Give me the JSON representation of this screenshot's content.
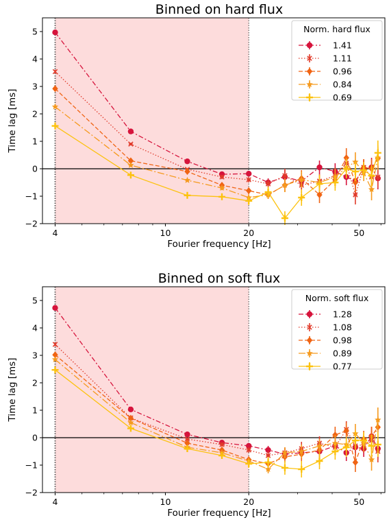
{
  "chart_data": [
    {
      "type": "line",
      "title": "Binned on hard flux",
      "xlabel": "Fourier frequency [Hz]",
      "ylabel": "Time lag [ms]",
      "xscale": "log",
      "xlim": [
        3.6,
        62
      ],
      "ylim": [
        -2,
        5.5
      ],
      "xticks": [
        4,
        10,
        20,
        50
      ],
      "yticks": [
        -2,
        -1,
        0,
        1,
        2,
        3,
        4,
        5
      ],
      "shaded_range": [
        4,
        20
      ],
      "shaded_color": "#fddcdc",
      "vlines": [
        4,
        20
      ],
      "hline": 0,
      "legend_title": "Norm. hard flux",
      "legend_loc": "upper right",
      "x": [
        4,
        7.5,
        12,
        16,
        20,
        23.5,
        27,
        31,
        36,
        41,
        45,
        48.5,
        52,
        55.5,
        58.5
      ],
      "series": [
        {
          "name": "1.41",
          "color": "#d6143c",
          "dash": "7,3,2,3",
          "marker": "circle",
          "y": [
            4.97,
            1.36,
            0.27,
            -0.2,
            -0.18,
            -0.5,
            -0.3,
            -0.45,
            0.05,
            -0.1,
            -0.3,
            -0.45,
            0.0,
            0.05,
            -0.35
          ],
          "err": [
            0.08,
            0.06,
            0.06,
            0.08,
            0.1,
            0.15,
            0.25,
            0.3,
            0.25,
            0.3,
            0.3,
            0.35,
            0.3,
            0.35,
            0.4
          ]
        },
        {
          "name": "1.11",
          "color": "#e03a2a",
          "dash": "1.5,2.5",
          "marker": "x",
          "y": [
            3.54,
            0.9,
            -0.02,
            -0.3,
            -0.4,
            -0.55,
            -0.25,
            -0.6,
            -0.45,
            -0.25,
            0.2,
            -0.95,
            0.05,
            -0.3,
            -0.3
          ],
          "err": [
            0.07,
            0.05,
            0.05,
            0.08,
            0.1,
            0.15,
            0.25,
            0.3,
            0.25,
            0.3,
            0.35,
            0.35,
            0.3,
            0.35,
            0.4
          ]
        },
        {
          "name": "0.96",
          "color": "#f06414",
          "dash": "6,3",
          "marker": "diamond",
          "y": [
            2.92,
            0.29,
            -0.1,
            -0.6,
            -0.8,
            -0.95,
            -0.6,
            -0.35,
            -0.95,
            -0.4,
            0.4,
            -0.5,
            0.05,
            0.0,
            0.38
          ],
          "err": [
            0.07,
            0.05,
            0.05,
            0.08,
            0.12,
            0.15,
            0.25,
            0.3,
            0.3,
            0.3,
            0.35,
            0.35,
            0.3,
            0.35,
            0.4
          ]
        },
        {
          "name": "0.84",
          "color": "#f59a1e",
          "dash": "10,3,2,3",
          "marker": "star",
          "y": [
            2.26,
            0.13,
            -0.42,
            -0.7,
            -1.05,
            -0.95,
            -0.6,
            -0.4,
            -0.5,
            -0.3,
            0.05,
            0.25,
            -0.15,
            -0.75,
            0.4
          ],
          "err": [
            0.06,
            0.05,
            0.05,
            0.08,
            0.12,
            0.15,
            0.25,
            0.3,
            0.3,
            0.3,
            0.35,
            0.35,
            0.3,
            0.4,
            0.45
          ]
        },
        {
          "name": "0.69",
          "color": "#fcc20f",
          "dash": "",
          "marker": "plus",
          "y": [
            1.56,
            -0.23,
            -0.97,
            -1.02,
            -1.17,
            -0.85,
            -1.8,
            -1.05,
            -0.55,
            -0.5,
            0.0,
            -0.1,
            -0.05,
            -0.25,
            0.58
          ],
          "err": [
            0.06,
            0.06,
            0.1,
            0.12,
            0.15,
            0.2,
            0.25,
            0.3,
            0.3,
            0.3,
            0.35,
            0.35,
            0.3,
            0.4,
            0.45
          ]
        }
      ]
    },
    {
      "type": "line",
      "title": "Binned on soft flux",
      "xlabel": "Fourier frequency [Hz]",
      "ylabel": "Time lag [ms]",
      "xscale": "log",
      "xlim": [
        3.6,
        62
      ],
      "ylim": [
        -2,
        5.5
      ],
      "xticks": [
        4,
        10,
        20,
        50
      ],
      "yticks": [
        -2,
        -1,
        0,
        1,
        2,
        3,
        4,
        5
      ],
      "shaded_range": [
        4,
        20
      ],
      "shaded_color": "#fddcdc",
      "vlines": [
        4,
        20
      ],
      "hline": 0,
      "legend_title": "Norm. soft flux",
      "legend_loc": "upper right",
      "x": [
        4,
        7.5,
        12,
        16,
        20,
        23.5,
        27,
        31,
        36,
        41,
        45,
        48.5,
        52,
        55.5,
        58.5
      ],
      "series": [
        {
          "name": "1.28",
          "color": "#d6143c",
          "dash": "7,3,2,3",
          "marker": "circle",
          "y": [
            4.73,
            1.03,
            0.12,
            -0.18,
            -0.3,
            -0.45,
            -0.6,
            -0.55,
            -0.5,
            -0.3,
            -0.55,
            -0.35,
            -0.4,
            0.05,
            -0.4
          ],
          "err": [
            0.08,
            0.06,
            0.06,
            0.08,
            0.1,
            0.15,
            0.2,
            0.25,
            0.25,
            0.3,
            0.3,
            0.3,
            0.3,
            0.35,
            0.4
          ]
        },
        {
          "name": "1.08",
          "color": "#e03a2a",
          "dash": "1.5,2.5",
          "marker": "x",
          "y": [
            3.4,
            0.72,
            -0.05,
            -0.25,
            -0.45,
            -0.65,
            -0.55,
            -0.4,
            -0.2,
            -0.35,
            0.3,
            -0.3,
            -0.25,
            -0.1,
            -0.5
          ],
          "err": [
            0.07,
            0.05,
            0.05,
            0.08,
            0.1,
            0.15,
            0.2,
            0.25,
            0.25,
            0.3,
            0.3,
            0.35,
            0.3,
            0.35,
            0.4
          ]
        },
        {
          "name": "0.98",
          "color": "#f06414",
          "dash": "6,3",
          "marker": "diamond",
          "y": [
            3.02,
            0.71,
            -0.2,
            -0.45,
            -0.8,
            -0.95,
            -0.7,
            -0.6,
            -0.45,
            0.1,
            0.25,
            -0.9,
            -0.05,
            0.05,
            0.38
          ],
          "err": [
            0.07,
            0.05,
            0.05,
            0.08,
            0.12,
            0.15,
            0.2,
            0.25,
            0.25,
            0.3,
            0.3,
            0.35,
            0.3,
            0.35,
            0.4
          ]
        },
        {
          "name": "0.89",
          "color": "#f59a1e",
          "dash": "10,3,2,3",
          "marker": "star",
          "y": [
            2.85,
            0.55,
            -0.35,
            -0.55,
            -0.85,
            -1.15,
            -0.55,
            -0.5,
            -0.3,
            -0.2,
            -0.25,
            0.15,
            -0.2,
            -0.8,
            0.65
          ],
          "err": [
            0.06,
            0.05,
            0.05,
            0.08,
            0.12,
            0.15,
            0.2,
            0.25,
            0.25,
            0.3,
            0.3,
            0.35,
            0.3,
            0.4,
            0.45
          ]
        },
        {
          "name": "0.77",
          "color": "#fcc20f",
          "dash": "",
          "marker": "plus",
          "y": [
            2.47,
            0.34,
            -0.4,
            -0.65,
            -0.95,
            -0.9,
            -1.1,
            -1.15,
            -0.85,
            -0.5,
            -0.35,
            -0.1,
            -0.1,
            -0.3,
            -0.25
          ],
          "err": [
            0.06,
            0.06,
            0.1,
            0.12,
            0.15,
            0.2,
            0.25,
            0.3,
            0.3,
            0.3,
            0.35,
            0.35,
            0.3,
            0.4,
            0.45
          ]
        }
      ]
    }
  ]
}
